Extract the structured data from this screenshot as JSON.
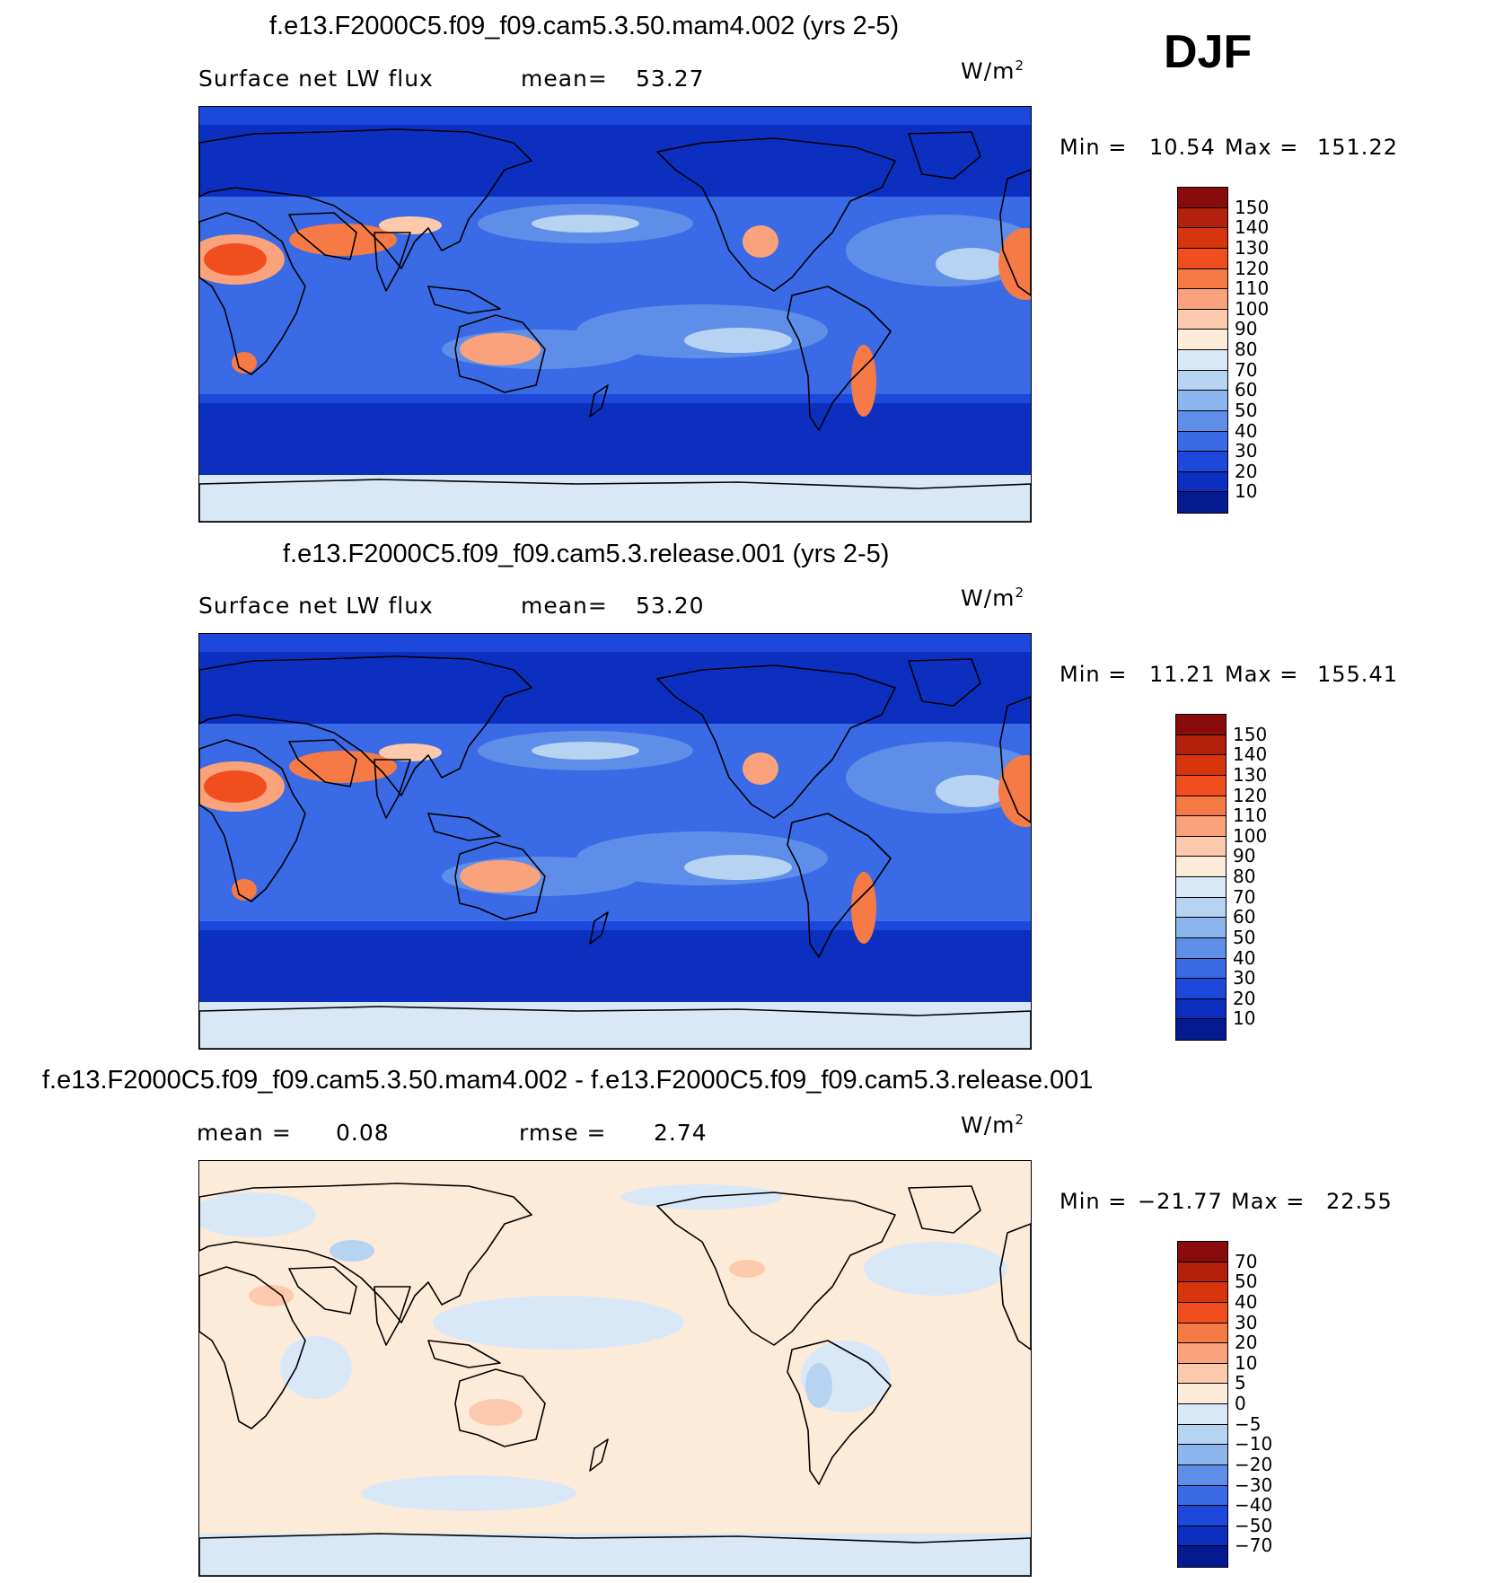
{
  "season": "DJF",
  "panels": [
    {
      "title": "f.e13.F2000C5.f09_f09.cam5.3.50.mam4.002 (yrs 2-5)",
      "left_label": "Surface net LW flux",
      "stat_label": "mean=",
      "stat_value": "53.27",
      "units": "W/m",
      "units_sup": "2",
      "min_label": "Min =",
      "min_value": "10.54",
      "max_label": "Max =",
      "max_value": "151.22",
      "levels": [
        "150",
        "140",
        "130",
        "120",
        "110",
        "100",
        "90",
        "80",
        "70",
        "60",
        "50",
        "40",
        "30",
        "20",
        "10"
      ],
      "colors": [
        "#8a0b0b",
        "#b3200c",
        "#d7350e",
        "#f04e1f",
        "#f57a45",
        "#f9a27b",
        "#fcc9ad",
        "#fdebd9",
        "#d9e8f7",
        "#b7d3f2",
        "#8db5ed",
        "#5f8ee8",
        "#3a6ae6",
        "#1d48dc",
        "#0d2fc0",
        "#061a8f"
      ],
      "field": "abs"
    },
    {
      "title": "f.e13.F2000C5.f09_f09.cam5.3.release.001 (yrs 2-5)",
      "left_label": "Surface net LW flux",
      "stat_label": "mean=",
      "stat_value": "53.20",
      "units": "W/m",
      "units_sup": "2",
      "min_label": "Min =",
      "min_value": "11.21",
      "max_label": "Max =",
      "max_value": "155.41",
      "levels": [
        "150",
        "140",
        "130",
        "120",
        "110",
        "100",
        "90",
        "80",
        "70",
        "60",
        "50",
        "40",
        "30",
        "20",
        "10"
      ],
      "colors": [
        "#8a0b0b",
        "#b3200c",
        "#d7350e",
        "#f04e1f",
        "#f57a45",
        "#f9a27b",
        "#fcc9ad",
        "#fdebd9",
        "#d9e8f7",
        "#b7d3f2",
        "#8db5ed",
        "#5f8ee8",
        "#3a6ae6",
        "#1d48dc",
        "#0d2fc0",
        "#061a8f"
      ],
      "field": "abs"
    },
    {
      "title": "f.e13.F2000C5.f09_f09.cam5.3.50.mam4.002 - f.e13.F2000C5.f09_f09.cam5.3.release.001",
      "left_label": "mean =",
      "left_value": "0.08",
      "stat_label": "rmse =",
      "stat_value": "2.74",
      "units": "W/m",
      "units_sup": "2",
      "min_label": "Min =",
      "min_value": "−21.77",
      "max_label": "Max =",
      "max_value": "22.55",
      "levels": [
        "70",
        "50",
        "40",
        "30",
        "20",
        "10",
        "5",
        "0",
        "−5",
        "−10",
        "−20",
        "−30",
        "−40",
        "−50",
        "−70"
      ],
      "colors": [
        "#8a0b0b",
        "#b3200c",
        "#d7350e",
        "#f04e1f",
        "#f57a45",
        "#f9a27b",
        "#fcc9ad",
        "#fdebd9",
        "#d9e8f7",
        "#b7d3f2",
        "#8db5ed",
        "#5f8ee8",
        "#3a6ae6",
        "#1d48dc",
        "#0d2fc0",
        "#061a8f"
      ],
      "field": "diff"
    }
  ]
}
